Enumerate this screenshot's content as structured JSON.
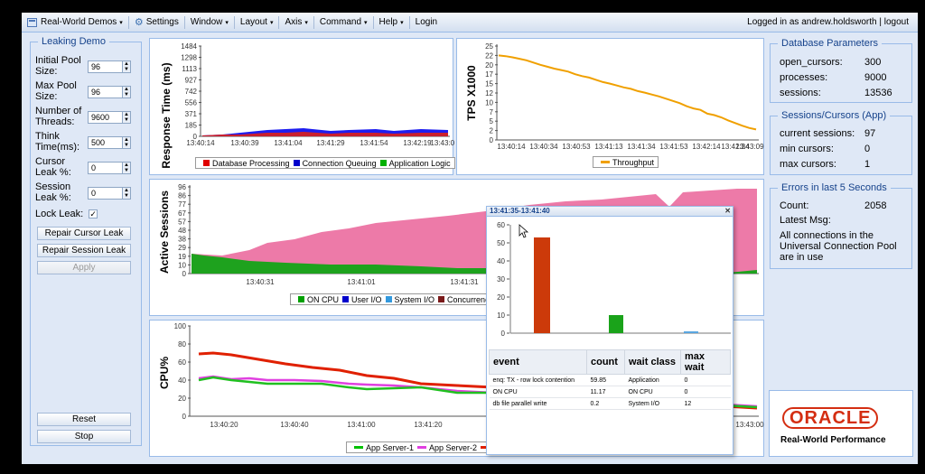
{
  "menubar": {
    "items": [
      {
        "label": "Real-World Demos",
        "arrow": "▾"
      },
      {
        "label": "Settings"
      },
      {
        "label": "Window",
        "arrow": "▾"
      },
      {
        "label": "Layout",
        "arrow": "▾"
      },
      {
        "label": "Axis",
        "arrow": "▾"
      },
      {
        "label": "Command",
        "arrow": "▾"
      },
      {
        "label": "Help",
        "arrow": "▾"
      },
      {
        "label": "Login"
      }
    ],
    "user": "Logged in as andrew.holdsworth",
    "logout": "logout"
  },
  "leaking_demo": {
    "title": "Leaking Demo",
    "fields": [
      {
        "label_1": "Initial Pool",
        "label_2": "Size:",
        "value": "96"
      },
      {
        "label_1": "Max Pool",
        "label_2": "Size:",
        "value": "96"
      },
      {
        "label_1": "Number of",
        "label_2": "Threads:",
        "value": "9600"
      },
      {
        "label_1": "Think",
        "label_2": "Time(ms):",
        "value": "500"
      },
      {
        "label_1": "Cursor",
        "label_2": "Leak %:",
        "value": "0"
      },
      {
        "label_1": "Session",
        "label_2": "Leak %:",
        "value": "0"
      }
    ],
    "lock_leak_label": "Lock Leak:",
    "lock_leak_mark": "✓",
    "repair_cursor": "Repair Cursor Leak",
    "repair_session": "Repair Session Leak",
    "apply": "Apply",
    "reset": "Reset",
    "stop": "Stop"
  },
  "response_chart": {
    "ylabel": "Response Time (ms)",
    "yticks": [
      "1484",
      "1298",
      "1113",
      "927",
      "742",
      "556",
      "371",
      "185",
      "0"
    ],
    "xticks": [
      "13:40:14",
      "13:40:39",
      "13:41:04",
      "13:41:29",
      "13:41:54",
      "13:42:19",
      "13:43:09"
    ],
    "legend": [
      "Database Processing",
      "Connection Queuing",
      "Application Logic"
    ],
    "colors": [
      "#e00000",
      "#0000cc",
      "#00b000"
    ]
  },
  "tps_chart": {
    "ylabel": "TPS X1000",
    "yticks": [
      "25",
      "22",
      "20",
      "17",
      "15",
      "12",
      "10",
      "7",
      "5",
      "2",
      "0"
    ],
    "xticks": [
      "13:40:14",
      "13:40:34",
      "13:40:53",
      "13:41:13",
      "13:41:34",
      "13:41:53",
      "13:42:14",
      "13:42:34",
      "13:43:09"
    ],
    "legend": "Throughput",
    "color": "#f0a000"
  },
  "sessions_chart": {
    "ylabel": "Active Sessions",
    "yticks": [
      "96",
      "86",
      "77",
      "67",
      "57",
      "48",
      "38",
      "29",
      "19",
      "10",
      "0"
    ],
    "xticks": [
      "13:40:31",
      "13:41:01",
      "13:41:31"
    ],
    "legend": [
      "ON CPU",
      "User I/O",
      "System I/O",
      "Concurrency"
    ],
    "colors": [
      "#00a000",
      "#0000cc",
      "#3399dd",
      "#7a1a1a"
    ]
  },
  "cpu_chart": {
    "ylabel": "CPU%",
    "yticks": [
      "100",
      "80",
      "60",
      "40",
      "20",
      "0"
    ],
    "xticks": [
      "13:40:20",
      "13:40:40",
      "13:41:00",
      "13:41:20",
      "13:43:00"
    ],
    "legend": [
      "App Server-1",
      "App Server-2"
    ],
    "colors": [
      "#00c000",
      "#e040e0",
      "#e02000"
    ]
  },
  "popup": {
    "title": "13:41:35-13:41:40",
    "close": "✕",
    "yticks": [
      "60",
      "50",
      "40",
      "30",
      "20",
      "10",
      "0"
    ],
    "columns": [
      "event",
      "count",
      "wait class",
      "max wait"
    ],
    "rows": [
      {
        "event": "enq: TX - row lock contention",
        "count": "59.85",
        "wait_class": "Application",
        "max_wait": "0"
      },
      {
        "event": "ON CPU",
        "count": "11.17",
        "wait_class": "ON CPU",
        "max_wait": "0"
      },
      {
        "event": "db file parallel write",
        "count": "0.2",
        "wait_class": "System I/O",
        "max_wait": "12"
      }
    ]
  },
  "database_parameters": {
    "title": "Database Parameters",
    "rows": [
      {
        "label": "open_cursors:",
        "value": "300"
      },
      {
        "label": "processes:",
        "value": "9000"
      },
      {
        "label": "sessions:",
        "value": "13536"
      }
    ]
  },
  "sessions_cursors": {
    "title": "Sessions/Cursors (App)",
    "rows": [
      {
        "label": "current sessions:",
        "value": "97"
      },
      {
        "label": "min cursors:",
        "value": "0"
      },
      {
        "label": "max cursors:",
        "value": "1"
      }
    ]
  },
  "errors": {
    "title": "Errors in last 5 Seconds",
    "count_label": "Count:",
    "count_value": "2058",
    "latest_label": "Latest Msg:",
    "msg_1": "All connections in the",
    "msg_2": "Universal Connection Pool",
    "msg_3": "are in use"
  },
  "branding": {
    "logo": "ORACLE",
    "subtitle": "Real-World Performance"
  }
}
